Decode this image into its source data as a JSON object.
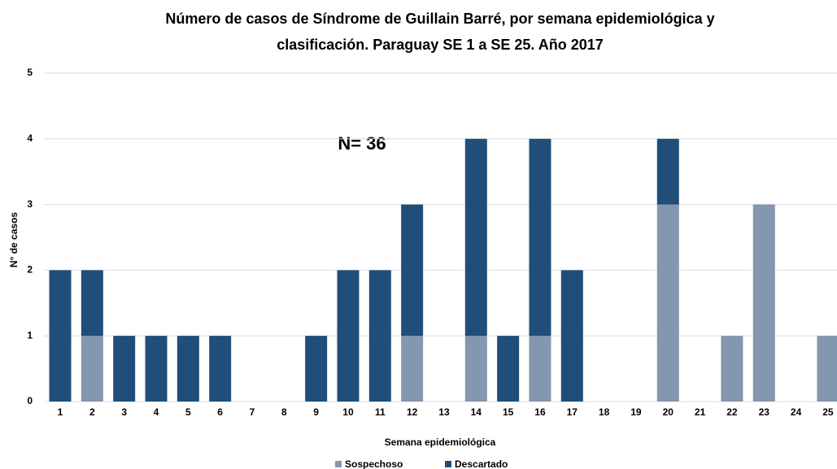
{
  "chart_data": {
    "type": "bar",
    "stacked": true,
    "title": [
      "Número de casos de Síndrome de Guillain Barré, por  semana epidemiológica  y",
      "clasificación. Paraguay SE 1 a SE 25. Año 2017"
    ],
    "annotation": "N= 36",
    "x_label": "Semana epidemiológica",
    "y_label": "N° de casos",
    "categories": [
      "1",
      "2",
      "3",
      "4",
      "5",
      "6",
      "7",
      "8",
      "9",
      "10",
      "11",
      "12",
      "13",
      "14",
      "15",
      "16",
      "17",
      "18",
      "19",
      "20",
      "21",
      "22",
      "23",
      "24",
      "25"
    ],
    "series": [
      {
        "name": "Sospechoso",
        "color": "#8497b0",
        "values": [
          0,
          1,
          0,
          0,
          0,
          0,
          0,
          0,
          0,
          0,
          0,
          1,
          0,
          1,
          0,
          1,
          0,
          0,
          0,
          3,
          0,
          1,
          3,
          0,
          1
        ]
      },
      {
        "name": "Descartado",
        "color": "#1f4e79",
        "values": [
          2,
          1,
          1,
          1,
          1,
          1,
          0,
          0,
          1,
          2,
          2,
          2,
          0,
          3,
          1,
          3,
          2,
          0,
          0,
          1,
          0,
          0,
          0,
          0,
          0
        ]
      }
    ],
    "ylim": [
      0,
      5
    ],
    "yticks": [
      0,
      1,
      2,
      3,
      4,
      5
    ],
    "grid": true,
    "legend": "bottom"
  }
}
